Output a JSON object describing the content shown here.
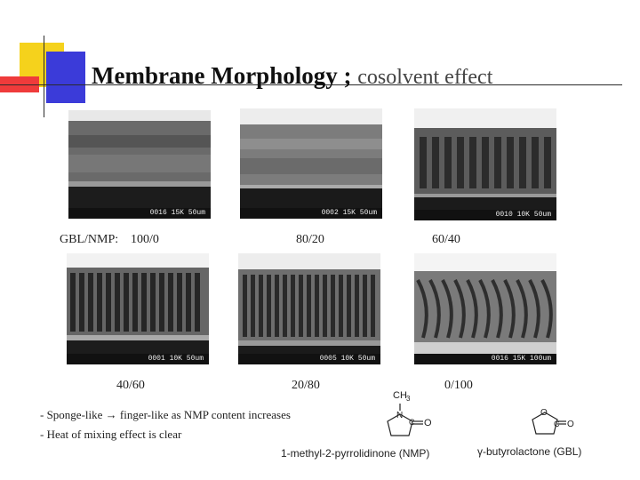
{
  "title": {
    "main": "Membrane Morphology ;",
    "sub": "cosolvent effect"
  },
  "images": [
    {
      "label": "0016 15K    50um",
      "caption": "100/0"
    },
    {
      "label": "0002 15K    50um",
      "caption": "80/20"
    },
    {
      "label": "0010 10K    50um",
      "caption": "60/40"
    },
    {
      "label": "0001 10K    50um",
      "caption": "40/60"
    },
    {
      "label": "0005 10K    50um",
      "caption": "20/80"
    },
    {
      "label": "0016 15K    100um",
      "caption": "0/100"
    }
  ],
  "ratio_prefix": "GBL/NMP:",
  "notes": [
    "- Sponge-like → finger-like as NMP content increases",
    "- Heat of mixing effect is clear"
  ],
  "chemicals": {
    "nmp_name": "1-methyl-2-pyrrolidinone (NMP)",
    "gbl_name": "γ-butyrolactone (GBL)",
    "nmp_methyl": "CH",
    "nmp_methyl_sub": "3",
    "n_atom": "N",
    "o_atom": "O",
    "c_atom": "C",
    "o_atom2": "O",
    "o_ring": "O",
    "c_atom2": "C",
    "o_atom3": "O"
  },
  "colors": {
    "yellow": "#f5d21c",
    "red": "#ef3b3b",
    "blue": "#3b3bd9"
  }
}
